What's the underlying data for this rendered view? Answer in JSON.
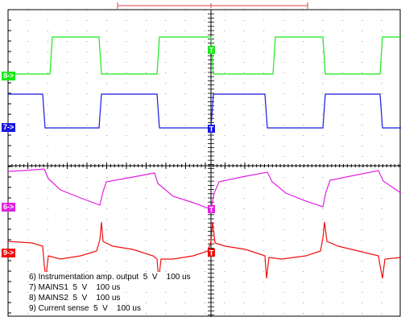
{
  "channels": [
    {
      "id": "ch8",
      "marker": "8->",
      "color": "#18e818"
    },
    {
      "id": "ch7",
      "marker": "7->",
      "color": "#1818e0"
    },
    {
      "id": "ch6",
      "marker": "6->",
      "color": "#e020e0"
    },
    {
      "id": "ch9",
      "marker": "9->",
      "color": "#ee1010"
    }
  ],
  "trigger_icon": "T",
  "legend": [
    "6) Instrumentation amp. output  5  V    100 us",
    "7) MAINS1  5  V    100 us",
    "8) MAINS2  5  V    100 us",
    "9) Current sense  5  V    100 us"
  ]
}
